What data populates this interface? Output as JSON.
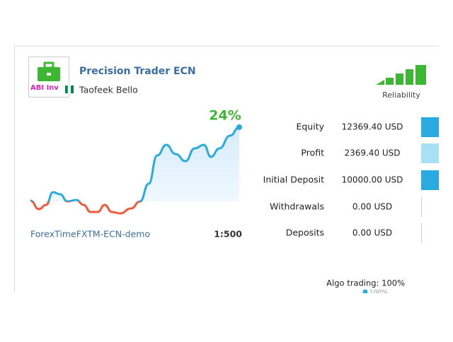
{
  "card": {
    "logo_text": "ABI Inv",
    "title": "Precision Trader ECN",
    "author": "Taofeek Bello",
    "reliability_label": "Reliability",
    "growth": "24%",
    "broker": "ForexTimeFXTM-ECN-demo",
    "leverage": "1:500",
    "stats": [
      {
        "label": "Equity",
        "value": "12369.40 USD"
      },
      {
        "label": "Profit",
        "value": "2369.40 USD"
      },
      {
        "label": "Initial Deposit",
        "value": "10000.00 USD"
      },
      {
        "label": "Withdrawals",
        "value": "0.00 USD"
      },
      {
        "label": "Deposits",
        "value": "0.00 USD"
      }
    ],
    "algo_trading": "Algo trading: 100%",
    "algo_sub": "100%"
  }
}
